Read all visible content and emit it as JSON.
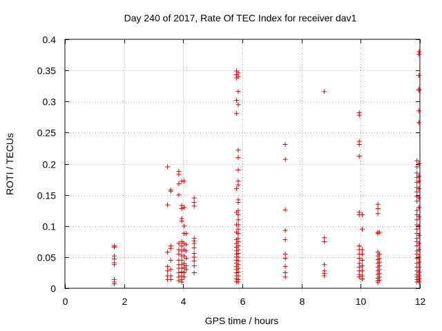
{
  "chart_data": {
    "type": "scatter",
    "title": "Day 240 of 2017, Rate Of TEC Index for receiver dav1",
    "xlabel": "GPS time / hours",
    "ylabel": "ROTI / TECUs",
    "xlim": [
      0,
      12
    ],
    "ylim": [
      0,
      0.4
    ],
    "xticks": [
      0,
      2,
      4,
      6,
      8,
      10,
      12
    ],
    "yticks": [
      0,
      0.05,
      0.1,
      0.15,
      0.2,
      0.25,
      0.3,
      0.35,
      0.4
    ],
    "xtick_labels": [
      "0",
      "2",
      "4",
      "6",
      "8",
      "10",
      "12"
    ],
    "ytick_labels": [
      "0",
      "0.05",
      "0.1",
      "0.15",
      "0.2",
      "0.25",
      "0.3",
      "0.35",
      "0.4"
    ],
    "grid": true,
    "marker": "+",
    "color": "#e00000",
    "series": [
      {
        "name": "dav1",
        "points": [
          [
            1.67,
            0.068
          ],
          [
            1.67,
            0.066
          ],
          [
            1.67,
            0.052
          ],
          [
            1.67,
            0.047
          ],
          [
            1.67,
            0.041
          ],
          [
            1.67,
            0.038
          ],
          [
            1.67,
            0.014
          ],
          [
            1.67,
            0.01
          ],
          [
            1.67,
            0.007
          ],
          [
            3.47,
            0.195
          ],
          [
            3.47,
            0.134
          ],
          [
            3.47,
            0.058
          ],
          [
            3.47,
            0.035
          ],
          [
            3.47,
            0.028
          ],
          [
            3.47,
            0.02
          ],
          [
            3.47,
            0.014
          ],
          [
            3.58,
            0.158
          ],
          [
            3.58,
            0.156
          ],
          [
            3.58,
            0.068
          ],
          [
            3.58,
            0.064
          ],
          [
            3.58,
            0.045
          ],
          [
            3.58,
            0.03
          ],
          [
            3.58,
            0.02
          ],
          [
            3.58,
            0.014
          ],
          [
            3.85,
            0.188
          ],
          [
            3.85,
            0.183
          ],
          [
            3.85,
            0.168
          ],
          [
            3.85,
            0.15
          ],
          [
            3.85,
            0.072
          ],
          [
            3.85,
            0.062
          ],
          [
            3.85,
            0.055
          ],
          [
            3.85,
            0.045
          ],
          [
            3.85,
            0.038
          ],
          [
            3.85,
            0.032
          ],
          [
            3.85,
            0.025
          ],
          [
            3.85,
            0.018
          ],
          [
            3.85,
            0.012
          ],
          [
            3.95,
            0.172
          ],
          [
            3.95,
            0.133
          ],
          [
            3.95,
            0.128
          ],
          [
            3.95,
            0.112
          ],
          [
            3.95,
            0.108
          ],
          [
            3.95,
            0.075
          ],
          [
            3.95,
            0.068
          ],
          [
            3.95,
            0.06
          ],
          [
            3.95,
            0.052
          ],
          [
            3.95,
            0.045
          ],
          [
            3.95,
            0.038
          ],
          [
            3.95,
            0.032
          ],
          [
            3.95,
            0.026
          ],
          [
            3.95,
            0.02
          ],
          [
            3.95,
            0.014
          ],
          [
            3.95,
            0.01
          ],
          [
            4.03,
            0.172
          ],
          [
            4.03,
            0.13
          ],
          [
            4.03,
            0.1
          ],
          [
            4.03,
            0.088
          ],
          [
            4.03,
            0.072
          ],
          [
            4.03,
            0.062
          ],
          [
            4.03,
            0.052
          ],
          [
            4.03,
            0.04
          ],
          [
            4.03,
            0.033
          ],
          [
            4.03,
            0.025
          ],
          [
            4.03,
            0.018
          ],
          [
            4.1,
            0.088
          ],
          [
            4.1,
            0.07
          ],
          [
            4.1,
            0.06
          ],
          [
            4.1,
            0.048
          ],
          [
            4.1,
            0.036
          ],
          [
            4.1,
            0.03
          ],
          [
            4.37,
            0.145
          ],
          [
            4.37,
            0.138
          ],
          [
            4.37,
            0.132
          ],
          [
            4.37,
            0.08
          ],
          [
            4.37,
            0.076
          ],
          [
            4.37,
            0.072
          ],
          [
            4.37,
            0.065
          ],
          [
            4.37,
            0.056
          ],
          [
            4.37,
            0.05
          ],
          [
            4.37,
            0.044
          ],
          [
            4.37,
            0.036
          ],
          [
            4.37,
            0.025
          ],
          [
            5.8,
            0.349
          ],
          [
            5.8,
            0.343
          ],
          [
            5.8,
            0.338
          ],
          [
            5.8,
            0.302
          ],
          [
            5.8,
            0.281
          ],
          [
            5.8,
            0.16
          ],
          [
            5.8,
            0.122
          ],
          [
            5.8,
            0.102
          ],
          [
            5.8,
            0.09
          ],
          [
            5.8,
            0.078
          ],
          [
            5.8,
            0.072
          ],
          [
            5.8,
            0.066
          ],
          [
            5.8,
            0.06
          ],
          [
            5.8,
            0.055
          ],
          [
            5.8,
            0.05
          ],
          [
            5.8,
            0.045
          ],
          [
            5.8,
            0.04
          ],
          [
            5.8,
            0.035
          ],
          [
            5.8,
            0.03
          ],
          [
            5.8,
            0.025
          ],
          [
            5.8,
            0.02
          ],
          [
            5.8,
            0.015
          ],
          [
            5.8,
            0.011
          ],
          [
            5.86,
            0.346
          ],
          [
            5.86,
            0.34
          ],
          [
            5.86,
            0.316
          ],
          [
            5.86,
            0.295
          ],
          [
            5.86,
            0.222
          ],
          [
            5.86,
            0.21
          ],
          [
            5.86,
            0.19
          ],
          [
            5.86,
            0.172
          ],
          [
            5.86,
            0.166
          ],
          [
            5.86,
            0.142
          ],
          [
            5.86,
            0.138
          ],
          [
            5.86,
            0.125
          ],
          [
            5.86,
            0.118
          ],
          [
            5.86,
            0.11
          ],
          [
            5.86,
            0.102
          ],
          [
            5.86,
            0.095
          ],
          [
            5.86,
            0.088
          ],
          [
            5.86,
            0.08
          ],
          [
            5.86,
            0.075
          ],
          [
            5.86,
            0.068
          ],
          [
            5.86,
            0.062
          ],
          [
            5.86,
            0.056
          ],
          [
            5.86,
            0.05
          ],
          [
            5.86,
            0.044
          ],
          [
            5.86,
            0.038
          ],
          [
            5.86,
            0.032
          ],
          [
            5.86,
            0.026
          ],
          [
            5.86,
            0.02
          ],
          [
            5.86,
            0.014
          ],
          [
            5.86,
            0.01
          ],
          [
            7.45,
            0.231
          ],
          [
            7.45,
            0.207
          ],
          [
            7.45,
            0.126
          ],
          [
            7.45,
            0.093
          ],
          [
            7.45,
            0.078
          ],
          [
            7.45,
            0.055
          ],
          [
            7.45,
            0.048
          ],
          [
            7.45,
            0.035
          ],
          [
            7.45,
            0.025
          ],
          [
            7.45,
            0.018
          ],
          [
            8.77,
            0.316
          ],
          [
            8.77,
            0.081
          ],
          [
            8.77,
            0.075
          ],
          [
            8.77,
            0.038
          ],
          [
            8.77,
            0.028
          ],
          [
            8.77,
            0.024
          ],
          [
            8.77,
            0.02
          ],
          [
            9.95,
            0.282
          ],
          [
            9.95,
            0.278
          ],
          [
            9.95,
            0.236
          ],
          [
            9.95,
            0.231
          ],
          [
            9.95,
            0.212
          ],
          [
            9.95,
            0.122
          ],
          [
            9.95,
            0.118
          ],
          [
            9.95,
            0.068
          ],
          [
            9.95,
            0.062
          ],
          [
            9.95,
            0.055
          ],
          [
            9.95,
            0.048
          ],
          [
            9.95,
            0.04
          ],
          [
            9.95,
            0.034
          ],
          [
            9.95,
            0.028
          ],
          [
            9.95,
            0.022
          ],
          [
            9.95,
            0.018
          ],
          [
            10.05,
            0.118
          ],
          [
            10.05,
            0.095
          ],
          [
            10.05,
            0.062
          ],
          [
            10.05,
            0.055
          ],
          [
            10.05,
            0.045
          ],
          [
            10.05,
            0.036
          ],
          [
            10.05,
            0.028
          ],
          [
            10.05,
            0.02
          ],
          [
            10.05,
            0.015
          ],
          [
            10.58,
            0.135
          ],
          [
            10.58,
            0.128
          ],
          [
            10.58,
            0.12
          ],
          [
            10.58,
            0.09
          ],
          [
            10.58,
            0.088
          ],
          [
            10.58,
            0.058
          ],
          [
            10.58,
            0.052
          ],
          [
            10.58,
            0.046
          ],
          [
            10.58,
            0.04
          ],
          [
            10.58,
            0.034
          ],
          [
            10.58,
            0.028
          ],
          [
            10.58,
            0.022
          ],
          [
            10.58,
            0.016
          ],
          [
            10.58,
            0.012
          ],
          [
            10.58,
            0.009
          ],
          [
            10.63,
            0.09
          ],
          [
            10.63,
            0.055
          ],
          [
            10.63,
            0.048
          ],
          [
            10.63,
            0.042
          ],
          [
            10.63,
            0.036
          ],
          [
            10.63,
            0.03
          ],
          [
            10.63,
            0.024
          ],
          [
            10.63,
            0.018
          ],
          [
            10.63,
            0.013
          ],
          [
            11.9,
            0.205
          ],
          [
            11.9,
            0.195
          ],
          [
            11.9,
            0.185
          ],
          [
            11.9,
            0.178
          ],
          [
            11.9,
            0.17
          ],
          [
            11.9,
            0.162
          ],
          [
            11.9,
            0.155
          ],
          [
            11.9,
            0.148
          ],
          [
            11.9,
            0.14
          ],
          [
            11.9,
            0.125
          ],
          [
            11.9,
            0.118
          ],
          [
            11.9,
            0.11
          ],
          [
            11.9,
            0.102
          ],
          [
            11.9,
            0.095
          ],
          [
            11.9,
            0.088
          ],
          [
            11.9,
            0.08
          ],
          [
            11.9,
            0.075
          ],
          [
            11.9,
            0.068
          ],
          [
            11.9,
            0.06
          ],
          [
            11.9,
            0.055
          ],
          [
            11.9,
            0.048
          ],
          [
            11.9,
            0.04
          ],
          [
            11.9,
            0.034
          ],
          [
            11.9,
            0.028
          ],
          [
            11.9,
            0.022
          ],
          [
            11.9,
            0.018
          ],
          [
            11.9,
            0.014
          ],
          [
            11.9,
            0.01
          ],
          [
            11.97,
            0.38
          ],
          [
            11.97,
            0.376
          ],
          [
            11.97,
            0.342
          ],
          [
            11.97,
            0.32
          ],
          [
            11.97,
            0.318
          ],
          [
            11.97,
            0.285
          ],
          [
            11.97,
            0.266
          ],
          [
            11.97,
            0.2
          ],
          [
            11.97,
            0.18
          ],
          [
            11.97,
            0.172
          ],
          [
            11.97,
            0.16
          ],
          [
            11.97,
            0.145
          ],
          [
            11.97,
            0.13
          ],
          [
            11.97,
            0.115
          ],
          [
            11.97,
            0.1
          ],
          [
            11.97,
            0.085
          ],
          [
            11.97,
            0.072
          ],
          [
            11.97,
            0.062
          ],
          [
            11.97,
            0.05
          ],
          [
            11.97,
            0.042
          ],
          [
            11.97,
            0.034
          ],
          [
            11.97,
            0.026
          ],
          [
            11.97,
            0.02
          ],
          [
            11.97,
            0.015
          ],
          [
            11.97,
            0.011
          ]
        ]
      }
    ]
  }
}
